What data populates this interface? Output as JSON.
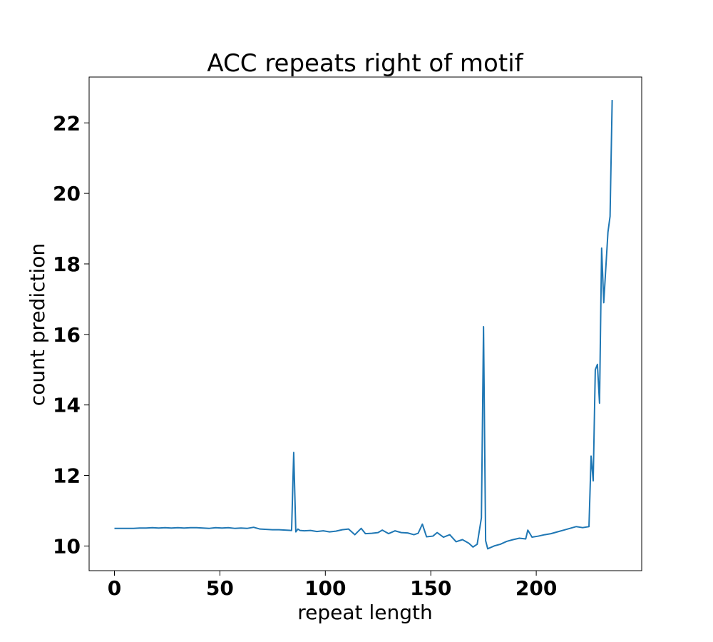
{
  "chart_data": {
    "type": "line",
    "title": "ACC repeats right of motif",
    "xlabel": "repeat length",
    "ylabel": "count prediction",
    "xlim": [
      -12,
      250
    ],
    "ylim": [
      9.3,
      23.3
    ],
    "xticks": [
      0,
      50,
      100,
      150,
      200
    ],
    "yticks": [
      10,
      12,
      14,
      16,
      18,
      20,
      22
    ],
    "grid": false,
    "color": "#1f77b4",
    "x": [
      0,
      3,
      6,
      9,
      12,
      15,
      18,
      21,
      24,
      27,
      30,
      33,
      36,
      39,
      42,
      45,
      48,
      51,
      54,
      57,
      60,
      63,
      66,
      69,
      72,
      75,
      78,
      81,
      84,
      85,
      86,
      87,
      88,
      90,
      93,
      96,
      99,
      102,
      105,
      108,
      111,
      114,
      117,
      119,
      122,
      125,
      127,
      130,
      133,
      136,
      139,
      142,
      144,
      146,
      148,
      151,
      153,
      156,
      159,
      162,
      165,
      168,
      170,
      172,
      174,
      175,
      176,
      177,
      180,
      183,
      186,
      189,
      192,
      195,
      196,
      198,
      201,
      204,
      207,
      210,
      213,
      216,
      219,
      222,
      225,
      226,
      227,
      228,
      229,
      230,
      231,
      232,
      233,
      234,
      235,
      236
    ],
    "values": [
      10.5,
      10.5,
      10.5,
      10.5,
      10.51,
      10.51,
      10.52,
      10.51,
      10.52,
      10.51,
      10.52,
      10.51,
      10.52,
      10.52,
      10.51,
      10.5,
      10.52,
      10.51,
      10.52,
      10.5,
      10.51,
      10.5,
      10.53,
      10.48,
      10.47,
      10.46,
      10.46,
      10.45,
      10.44,
      12.65,
      10.4,
      10.48,
      10.44,
      10.43,
      10.44,
      10.41,
      10.43,
      10.4,
      10.42,
      10.46,
      10.48,
      10.32,
      10.5,
      10.35,
      10.36,
      10.38,
      10.45,
      10.35,
      10.43,
      10.38,
      10.37,
      10.32,
      10.36,
      10.62,
      10.26,
      10.28,
      10.38,
      10.25,
      10.32,
      10.12,
      10.18,
      10.08,
      9.97,
      10.05,
      10.8,
      16.22,
      10.15,
      9.92,
      10.0,
      10.05,
      10.13,
      10.18,
      10.22,
      10.2,
      10.45,
      10.25,
      10.28,
      10.32,
      10.35,
      10.4,
      10.45,
      10.5,
      10.55,
      10.52,
      10.55,
      12.55,
      11.85,
      15.0,
      15.15,
      14.05,
      18.45,
      16.9,
      17.9,
      18.9,
      19.35,
      22.65
    ]
  }
}
